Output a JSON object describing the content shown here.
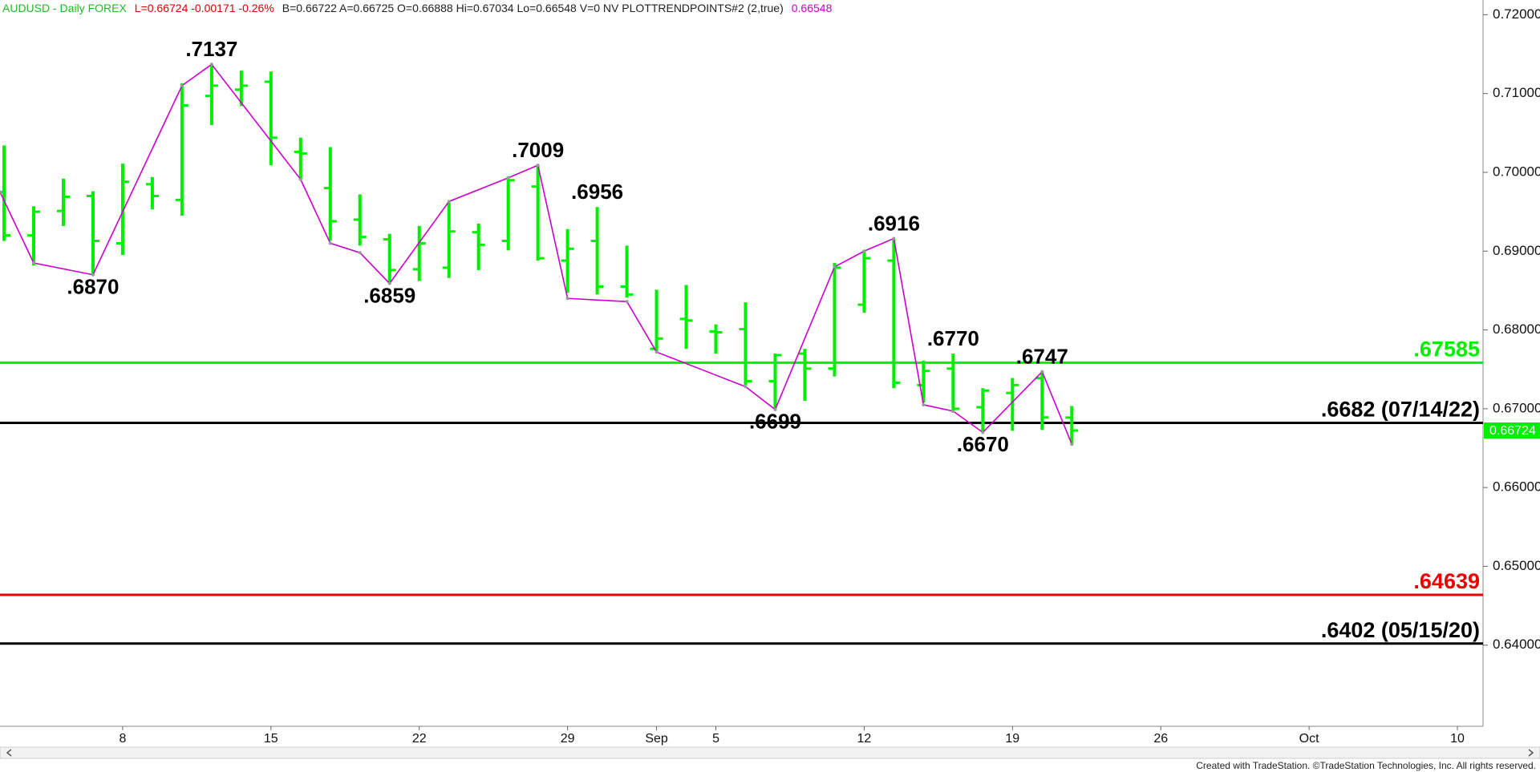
{
  "chart_data": {
    "type": "ohlc",
    "header": [
      {
        "text": "AUDUSD - Daily  FOREX",
        "color": "#22bb22"
      },
      {
        "text": "L=0.66724  -0.00171  -0.26%",
        "color": "#dd0000"
      },
      {
        "text": "B=0.66722  A=0.66725  O=0.66888  Hi=0.67034  Lo=0.66548  V=0  NV  PLOTTRENDPOINTS#2 (2,true)",
        "color": "#222222"
      },
      {
        "text": "0.66548",
        "color": "#cc00cc"
      }
    ],
    "footer": "Created with TradeStation. ©TradeStation Technologies, Inc. All rights reserved.",
    "categories": [
      null,
      null,
      null,
      null,
      "8",
      null,
      null,
      null,
      null,
      "15",
      null,
      null,
      null,
      null,
      "22",
      null,
      null,
      null,
      null,
      "29",
      null,
      null,
      "Sep",
      null,
      "5",
      null,
      null,
      null,
      null,
      "12",
      null,
      null,
      null,
      null,
      "19",
      null,
      null,
      null,
      null,
      "26",
      null,
      null,
      null,
      null,
      "Oct",
      null,
      null,
      null,
      null,
      "10"
    ],
    "color": "#00ee00",
    "open": [
      0.6975,
      0.692,
      0.6951,
      0.697,
      0.691,
      0.6985,
      0.6965,
      0.7097,
      0.7105,
      0.7115,
      0.7026,
      0.698,
      0.694,
      0.6915,
      0.6877,
      0.6879,
      0.6924,
      0.6913,
      0.6982,
      0.6888,
      0.6913,
      0.6855,
      0.6776,
      0.6814,
      0.6798,
      0.6801,
      0.6735,
      0.677,
      0.6751,
      0.6832,
      0.6888,
      0.673,
      0.6751,
      0.6702,
      0.672,
      0.6739,
      0.66888,
      null,
      null,
      null,
      null,
      null,
      null,
      null,
      null,
      null,
      null,
      null,
      null,
      null
    ],
    "high": [
      0.7034,
      0.6957,
      0.6992,
      0.6976,
      0.7011,
      0.6994,
      0.7113,
      0.7137,
      0.7129,
      0.7128,
      0.7044,
      0.7032,
      0.6972,
      0.6922,
      0.6932,
      0.6963,
      0.6935,
      0.6995,
      0.7009,
      0.6928,
      0.6956,
      0.6907,
      0.6851,
      0.6857,
      0.6807,
      0.6835,
      0.677,
      0.6776,
      0.6885,
      0.6901,
      0.6916,
      0.6761,
      0.677,
      0.6726,
      0.6739,
      0.6747,
      0.67034,
      null,
      null,
      null,
      null,
      null,
      null,
      null,
      null,
      null,
      null,
      null,
      null,
      null
    ],
    "low": [
      0.6913,
      0.6882,
      0.6932,
      0.687,
      0.6895,
      0.6953,
      0.6945,
      0.706,
      0.7084,
      0.7009,
      0.6991,
      0.6913,
      0.6907,
      0.6859,
      0.6862,
      0.6866,
      0.6876,
      0.6901,
      0.6888,
      0.6847,
      0.6845,
      0.6841,
      0.6773,
      0.6776,
      0.677,
      0.673,
      0.6699,
      0.671,
      0.6741,
      0.6822,
      0.6726,
      0.6708,
      0.6695,
      0.667,
      0.6672,
      0.6673,
      0.66548,
      null,
      null,
      null,
      null,
      null,
      null,
      null,
      null,
      null,
      null,
      null,
      null,
      null
    ],
    "close": [
      0.692,
      0.695,
      0.6969,
      0.6913,
      0.6988,
      0.697,
      0.7085,
      0.711,
      0.711,
      0.7044,
      0.7024,
      0.6938,
      0.6918,
      0.6876,
      0.691,
      0.6925,
      0.6908,
      0.699,
      0.6891,
      0.6903,
      0.6855,
      0.6845,
      0.6789,
      0.6812,
      0.6797,
      0.6735,
      0.6768,
      0.6751,
      0.6879,
      0.6891,
      0.6733,
      0.6748,
      0.67,
      0.6723,
      0.673,
      0.6689,
      0.66724,
      null,
      null,
      null,
      null,
      null,
      null,
      null,
      null,
      null,
      null,
      null,
      null,
      null
    ],
    "trendline": {
      "color": "#cc00cc",
      "x": [
        0,
        1,
        3,
        6,
        7,
        10,
        11,
        12,
        13,
        15,
        17,
        18,
        19,
        21,
        22,
        25,
        26,
        28,
        29,
        30,
        31,
        32,
        33,
        35,
        36
      ],
      "values": [
        0.6975,
        0.6885,
        0.687,
        0.711,
        0.7137,
        0.6991,
        0.691,
        0.6898,
        0.6859,
        0.6963,
        0.6993,
        0.7009,
        0.684,
        0.6836,
        0.6772,
        0.6728,
        0.6699,
        0.688,
        0.69,
        0.6916,
        0.6705,
        0.6697,
        0.667,
        0.6747,
        0.6655
      ]
    },
    "annotations": [
      {
        "text": ".7137",
        "x": 7,
        "value": 0.7137
      },
      {
        "text": ".6870",
        "x": 3,
        "value": 0.687
      },
      {
        "text": ".7009",
        "x": 18,
        "value": 0.7009
      },
      {
        "text": ".6859",
        "x": 13,
        "value": 0.6859
      },
      {
        "text": ".6956",
        "x": 20,
        "value": 0.6956
      },
      {
        "text": ".6916",
        "x": 30,
        "value": 0.6916
      },
      {
        "text": ".6699",
        "x": 26,
        "value": 0.6699
      },
      {
        "text": ".6770",
        "x": 32,
        "value": 0.677
      },
      {
        "text": ".6747",
        "x": 35,
        "value": 0.6747
      },
      {
        "text": ".6670",
        "x": 33,
        "value": 0.667
      }
    ],
    "levels": [
      {
        "value": 0.67585,
        "label": ".67585",
        "color": "#00ee00"
      },
      {
        "value": 0.6682,
        "label": ".6682 (07/14/22)",
        "color": "#000000"
      },
      {
        "value": 0.64639,
        "label": ".64639",
        "color": "#ee0000"
      },
      {
        "value": 0.6402,
        "label": ".6402 (05/15/20)",
        "color": "#000000"
      }
    ],
    "last_price": {
      "value": 0.66724,
      "label": "0.66724"
    },
    "ylim": [
      0.6297,
      0.72187
    ],
    "yticks": [
      {
        "value": 0.72,
        "label": "0.72000"
      },
      {
        "value": 0.71,
        "label": "0.71000"
      },
      {
        "value": 0.7,
        "label": "0.70000"
      },
      {
        "value": 0.69,
        "label": "0.69000"
      },
      {
        "value": 0.68,
        "label": "0.68000"
      },
      {
        "value": 0.67,
        "label": "0.67000"
      },
      {
        "value": 0.66,
        "label": "0.66000"
      },
      {
        "value": 0.65,
        "label": "0.65000"
      },
      {
        "value": 0.64,
        "label": "0.64000"
      }
    ]
  }
}
